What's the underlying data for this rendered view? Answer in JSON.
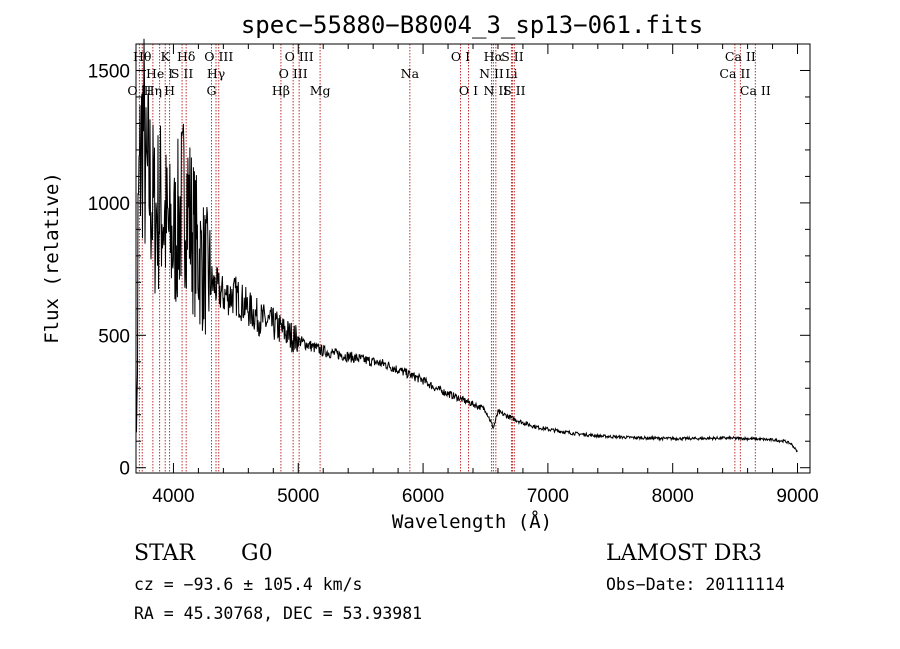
{
  "chart_data": {
    "type": "line",
    "title": "spec−55880−B8004_3_sp13−061.fits",
    "xlabel": "Wavelength (Å)",
    "ylabel": "Flux (relative)",
    "xlim": [
      3700,
      9100
    ],
    "ylim": [
      -20,
      1600
    ],
    "x_ticks": [
      4000,
      5000,
      6000,
      7000,
      8000,
      9000
    ],
    "y_ticks": [
      0,
      500,
      1000,
      1500
    ],
    "series": [
      {
        "name": "spectrum",
        "x": [
          3700,
          3720,
          3740,
          3760,
          3780,
          3800,
          3850,
          3900,
          3950,
          4000,
          4050,
          4100,
          4150,
          4200,
          4300,
          4400,
          4500,
          4600,
          4700,
          4800,
          4900,
          5000,
          5100,
          5200,
          5300,
          5400,
          5500,
          5600,
          5700,
          5800,
          5900,
          6000,
          6100,
          6200,
          6300,
          6400,
          6500,
          6563,
          6600,
          6700,
          6800,
          6900,
          7000,
          7200,
          7400,
          7600,
          7800,
          8000,
          8200,
          8400,
          8600,
          8800,
          8900,
          8950,
          9000
        ],
        "y": [
          400,
          1000,
          1200,
          1300,
          1050,
          1100,
          950,
          1000,
          900,
          850,
          950,
          1050,
          900,
          800,
          700,
          650,
          650,
          600,
          560,
          540,
          510,
          480,
          460,
          440,
          430,
          420,
          410,
          400,
          390,
          370,
          350,
          330,
          300,
          280,
          260,
          240,
          220,
          150,
          210,
          190,
          170,
          155,
          145,
          130,
          120,
          115,
          112,
          110,
          110,
          112,
          110,
          105,
          100,
          90,
          60
        ]
      }
    ],
    "line_markers": [
      {
        "label": "O II",
        "wavelength": 3727,
        "row": 3
      },
      {
        "label": "Hθ",
        "wavelength": 3750,
        "row": 1
      },
      {
        "label": "Hη",
        "wavelength": 3835,
        "row": 3
      },
      {
        "label": "He I",
        "wavelength": 3889,
        "row": 2
      },
      {
        "label": "K",
        "wavelength": 3934,
        "row": 1
      },
      {
        "label": "H",
        "wavelength": 3969,
        "row": 3
      },
      {
        "label": "S II",
        "wavelength": 4069,
        "row": 2
      },
      {
        "label": "Hδ",
        "wavelength": 4102,
        "row": 1
      },
      {
        "label": "G",
        "wavelength": 4305,
        "row": 3
      },
      {
        "label": "Hγ",
        "wavelength": 4341,
        "row": 2
      },
      {
        "label": "O III",
        "wavelength": 4363,
        "row": 1
      },
      {
        "label": "Hβ",
        "wavelength": 4861,
        "row": 3
      },
      {
        "label": "O III",
        "wavelength": 4959,
        "row": 2
      },
      {
        "label": "O III",
        "wavelength": 5007,
        "row": 1
      },
      {
        "label": "Mg",
        "wavelength": 5175,
        "row": 3
      },
      {
        "label": "Na",
        "wavelength": 5894,
        "row": 2
      },
      {
        "label": "O I",
        "wavelength": 6300,
        "row": 1
      },
      {
        "label": "O I",
        "wavelength": 6364,
        "row": 3
      },
      {
        "label": "N II",
        "wavelength": 6548,
        "row": 2
      },
      {
        "label": "Hα",
        "wavelength": 6563,
        "row": 1
      },
      {
        "label": "N II",
        "wavelength": 6583,
        "row": 3
      },
      {
        "label": "Li",
        "wavelength": 6708,
        "row": 2
      },
      {
        "label": "S II",
        "wavelength": 6716,
        "row": 1
      },
      {
        "label": "S II",
        "wavelength": 6731,
        "row": 3
      },
      {
        "label": "Ca II",
        "wavelength": 8498,
        "row": 2
      },
      {
        "label": "Ca II",
        "wavelength": 8542,
        "row": 1
      },
      {
        "label": "Ca II",
        "wavelength": 8662,
        "row": 3
      }
    ],
    "colors": {
      "spectrum": "#000000",
      "marker": "#c03030",
      "frame": "#000000"
    }
  },
  "info": {
    "object_class": "STAR",
    "subclass": "G0",
    "survey": "LAMOST DR3",
    "cz": "cz = −93.6 ± 105.4 km/s",
    "obs_date": "Obs−Date: 20111114",
    "coords": "RA =  45.30768, DEC =  53.93981"
  }
}
